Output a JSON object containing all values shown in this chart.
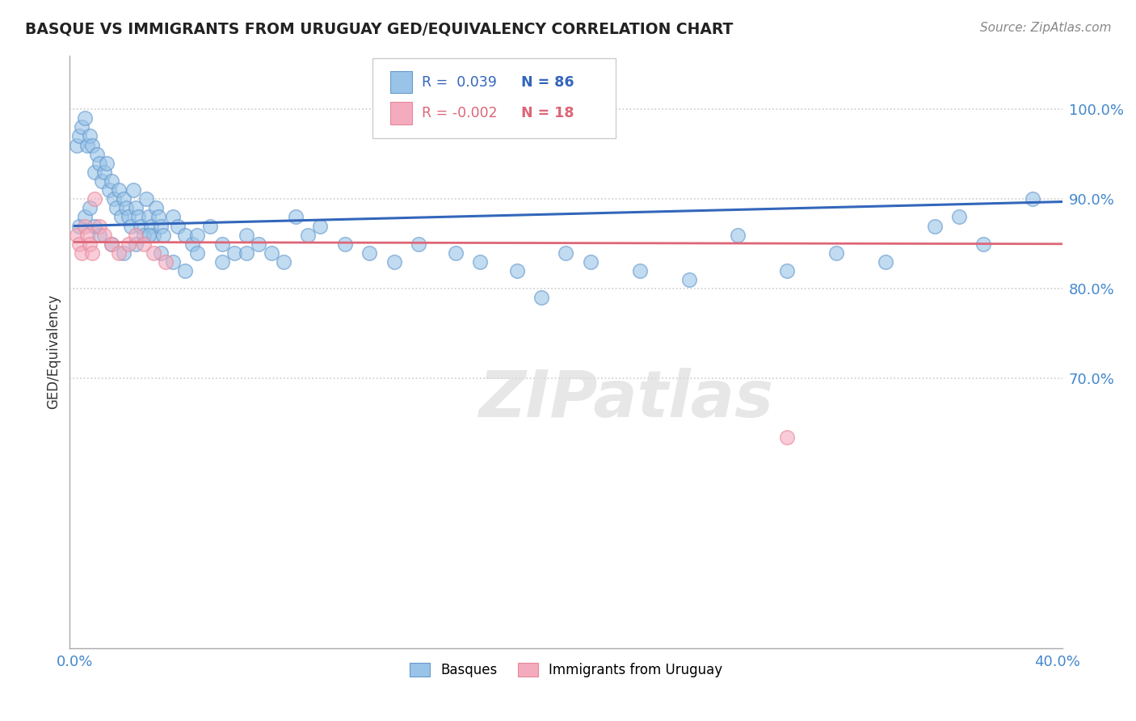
{
  "title": "BASQUE VS IMMIGRANTS FROM URUGUAY GED/EQUIVALENCY CORRELATION CHART",
  "source": "Source: ZipAtlas.com",
  "ylabel": "GED/Equivalency",
  "xlim": [
    -0.002,
    0.402
  ],
  "ylim": [
    0.4,
    1.06
  ],
  "xticks": [
    0.0,
    0.1,
    0.2,
    0.3,
    0.4
  ],
  "xticklabels": [
    "0.0%",
    "",
    "",
    "",
    "40.0%"
  ],
  "yticks": [
    0.7,
    0.8,
    0.9,
    1.0
  ],
  "yticklabels": [
    "70.0%",
    "80.0%",
    "90.0%",
    "100.0%"
  ],
  "grid_color": "#cccccc",
  "background_color": "#ffffff",
  "blue_color": "#99C4E8",
  "pink_color": "#F4ABBE",
  "blue_edge_color": "#6699CC",
  "pink_edge_color": "#E8889A",
  "blue_line_color": "#3366BB",
  "pink_line_color": "#DD6677",
  "legend_R_blue": "R =  0.039",
  "legend_N_blue": "N = 86",
  "legend_R_pink": "R = -0.002",
  "legend_N_pink": "N = 18",
  "legend_label_blue": "Basques",
  "legend_label_pink": "Immigrants from Uruguay",
  "watermark": "ZIPatlas",
  "blue_x": [
    0.001,
    0.002,
    0.003,
    0.004,
    0.005,
    0.006,
    0.007,
    0.008,
    0.009,
    0.01,
    0.011,
    0.012,
    0.013,
    0.014,
    0.015,
    0.016,
    0.017,
    0.018,
    0.019,
    0.02,
    0.021,
    0.022,
    0.023,
    0.024,
    0.025,
    0.026,
    0.027,
    0.028,
    0.029,
    0.03,
    0.031,
    0.032,
    0.033,
    0.034,
    0.035,
    0.036,
    0.04,
    0.042,
    0.045,
    0.048,
    0.05,
    0.055,
    0.06,
    0.065,
    0.07,
    0.075,
    0.08,
    0.085,
    0.09,
    0.095,
    0.1,
    0.11,
    0.12,
    0.13,
    0.14,
    0.155,
    0.165,
    0.18,
    0.2,
    0.21,
    0.23,
    0.25,
    0.27,
    0.29,
    0.31,
    0.33,
    0.35,
    0.36,
    0.37,
    0.002,
    0.004,
    0.006,
    0.008,
    0.01,
    0.015,
    0.02,
    0.025,
    0.03,
    0.035,
    0.04,
    0.045,
    0.05,
    0.06,
    0.07,
    0.19,
    0.39
  ],
  "blue_y": [
    0.96,
    0.97,
    0.98,
    0.99,
    0.96,
    0.97,
    0.96,
    0.93,
    0.95,
    0.94,
    0.92,
    0.93,
    0.94,
    0.91,
    0.92,
    0.9,
    0.89,
    0.91,
    0.88,
    0.9,
    0.89,
    0.88,
    0.87,
    0.91,
    0.89,
    0.88,
    0.87,
    0.86,
    0.9,
    0.88,
    0.87,
    0.86,
    0.89,
    0.88,
    0.87,
    0.86,
    0.88,
    0.87,
    0.86,
    0.85,
    0.86,
    0.87,
    0.85,
    0.84,
    0.86,
    0.85,
    0.84,
    0.83,
    0.88,
    0.86,
    0.87,
    0.85,
    0.84,
    0.83,
    0.85,
    0.84,
    0.83,
    0.82,
    0.84,
    0.83,
    0.82,
    0.81,
    0.86,
    0.82,
    0.84,
    0.83,
    0.87,
    0.88,
    0.85,
    0.87,
    0.88,
    0.89,
    0.87,
    0.86,
    0.85,
    0.84,
    0.85,
    0.86,
    0.84,
    0.83,
    0.82,
    0.84,
    0.83,
    0.84,
    0.79,
    0.9
  ],
  "pink_x": [
    0.001,
    0.002,
    0.003,
    0.004,
    0.005,
    0.006,
    0.007,
    0.008,
    0.01,
    0.012,
    0.015,
    0.018,
    0.022,
    0.025,
    0.028,
    0.032,
    0.037,
    0.29
  ],
  "pink_y": [
    0.86,
    0.85,
    0.84,
    0.87,
    0.86,
    0.85,
    0.84,
    0.9,
    0.87,
    0.86,
    0.85,
    0.84,
    0.85,
    0.86,
    0.85,
    0.84,
    0.83,
    0.635
  ],
  "blue_trend_x": [
    0.0,
    0.402
  ],
  "blue_trend_y": [
    0.87,
    0.897
  ],
  "pink_trend_x": [
    0.0,
    0.402
  ],
  "pink_trend_y": [
    0.852,
    0.85
  ]
}
